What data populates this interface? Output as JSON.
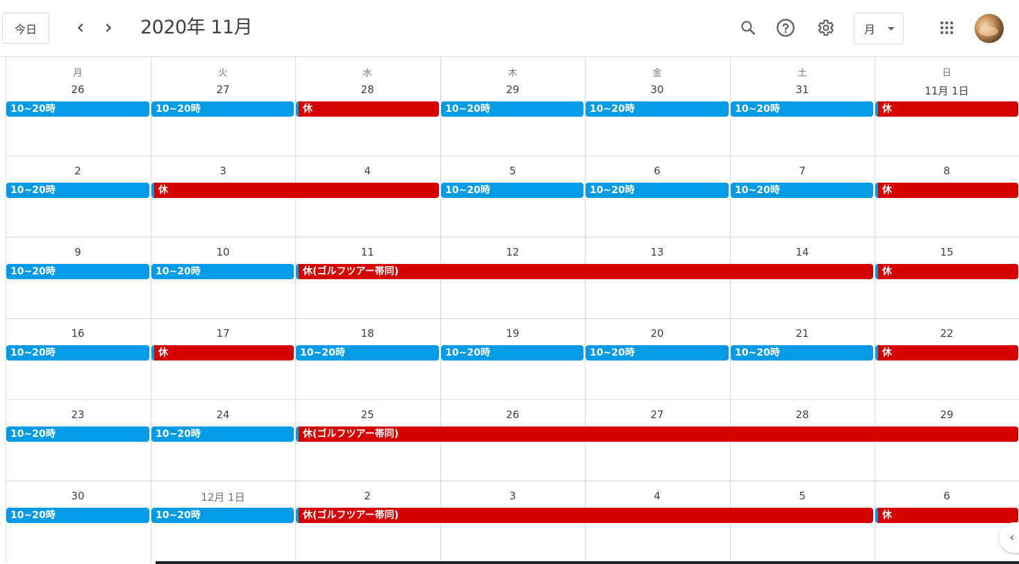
{
  "header": {
    "today_label": "今日",
    "title": "2020年 11月",
    "view_label": "月",
    "icons": {
      "prev": "chevron-left-icon",
      "next": "chevron-right-icon",
      "search": "search-icon",
      "help": "help-icon",
      "settings": "gear-icon",
      "apps": "apps-grid-icon"
    }
  },
  "weekdays": [
    "月",
    "火",
    "水",
    "木",
    "金",
    "土",
    "日"
  ],
  "weeks": [
    [
      "26",
      "27",
      "28",
      "29",
      "30",
      "31",
      "11月 1日"
    ],
    [
      "2",
      "3",
      "4",
      "5",
      "6",
      "7",
      "8"
    ],
    [
      "9",
      "10",
      "11",
      "12",
      "13",
      "14",
      "15"
    ],
    [
      "16",
      "17",
      "18",
      "19",
      "20",
      "21",
      "22"
    ],
    [
      "23",
      "24",
      "25",
      "26",
      "27",
      "28",
      "29"
    ],
    [
      "30",
      "12月 1日",
      "2",
      "3",
      "4",
      "5",
      "6"
    ]
  ],
  "events": [
    [
      {
        "label": "10~20時",
        "color": "blue",
        "start": 0,
        "span": 1
      },
      {
        "label": "10~20時",
        "color": "blue",
        "start": 1,
        "span": 1
      },
      {
        "label": "休",
        "color": "red",
        "start": 2,
        "span": 1
      },
      {
        "label": "10~20時",
        "color": "blue",
        "start": 3,
        "span": 1
      },
      {
        "label": "10~20時",
        "color": "blue",
        "start": 4,
        "span": 1
      },
      {
        "label": "10~20時",
        "color": "blue",
        "start": 5,
        "span": 1
      },
      {
        "label": "休",
        "color": "red",
        "start": 6,
        "span": 1
      }
    ],
    [
      {
        "label": "10~20時",
        "color": "blue",
        "start": 0,
        "span": 1
      },
      {
        "label": "休",
        "color": "red",
        "start": 1,
        "span": 2
      },
      {
        "label": "10~20時",
        "color": "blue",
        "start": 3,
        "span": 1
      },
      {
        "label": "10~20時",
        "color": "blue",
        "start": 4,
        "span": 1
      },
      {
        "label": "10~20時",
        "color": "blue",
        "start": 5,
        "span": 1
      },
      {
        "label": "休",
        "color": "red",
        "start": 6,
        "span": 1
      }
    ],
    [
      {
        "label": "10~20時",
        "color": "blue",
        "start": 0,
        "span": 1
      },
      {
        "label": "10~20時",
        "color": "blue",
        "start": 1,
        "span": 1
      },
      {
        "label": "休(ゴルフツアー帯同)",
        "color": "red",
        "start": 2,
        "span": 4
      },
      {
        "label": "休",
        "color": "red",
        "start": 6,
        "span": 1
      }
    ],
    [
      {
        "label": "10~20時",
        "color": "blue",
        "start": 0,
        "span": 1
      },
      {
        "label": "休",
        "color": "red",
        "start": 1,
        "span": 1
      },
      {
        "label": "10~20時",
        "color": "blue",
        "start": 2,
        "span": 1
      },
      {
        "label": "10~20時",
        "color": "blue",
        "start": 3,
        "span": 1
      },
      {
        "label": "10~20時",
        "color": "blue",
        "start": 4,
        "span": 1
      },
      {
        "label": "10~20時",
        "color": "blue",
        "start": 5,
        "span": 1
      },
      {
        "label": "休",
        "color": "red",
        "start": 6,
        "span": 1
      }
    ],
    [
      {
        "label": "10~20時",
        "color": "blue",
        "start": 0,
        "span": 1
      },
      {
        "label": "10~20時",
        "color": "blue",
        "start": 1,
        "span": 1
      },
      {
        "label": "休(ゴルフツアー帯同)",
        "color": "red",
        "start": 2,
        "span": 5
      }
    ],
    [
      {
        "label": "10~20時",
        "color": "blue",
        "start": 0,
        "span": 1
      },
      {
        "label": "10~20時",
        "color": "blue",
        "start": 1,
        "span": 1
      },
      {
        "label": "休(ゴルフツアー帯同)",
        "color": "red",
        "start": 2,
        "span": 4
      },
      {
        "label": "休",
        "color": "red",
        "start": 6,
        "span": 1
      }
    ]
  ],
  "colors": {
    "blue": "#039be5",
    "red": "#d50000"
  }
}
